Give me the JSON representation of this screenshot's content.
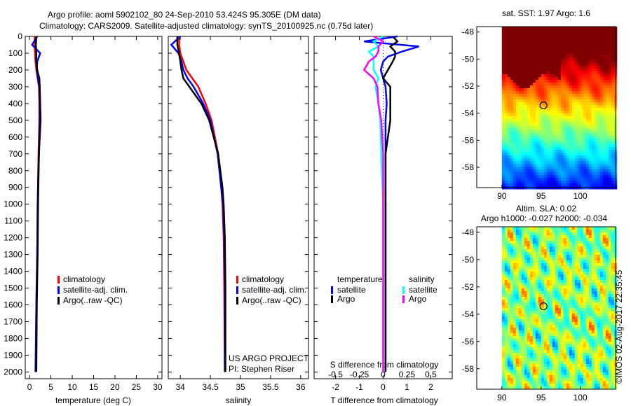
{
  "title_line1": "Argo profile: aoml 5902102_80 24-Sep-2010 53.424S 95.305E (DM data)",
  "title_line2": "Climatology: CARS2009. Satellite-adjusted climatology: synTS_20100925.nc (0.75d later)",
  "credit": "©IMOS 02-Aug-2017 22:35:45",
  "colors": {
    "climatology": "#ff0000",
    "satellite": "#0000ff",
    "argo": "#000000",
    "sal_satellite": "#00ffff",
    "sal_argo": "#ff00ff"
  },
  "chart_data": [
    {
      "type": "line",
      "name": "temperature-panel",
      "xlabel": "temperature (deg C)",
      "ylabel": "",
      "xlim": [
        -1,
        31
      ],
      "ylim": [
        2040,
        0
      ],
      "xticks": [
        0,
        5,
        10,
        15,
        20,
        25,
        30
      ],
      "yticks": [
        0,
        100,
        200,
        300,
        400,
        500,
        600,
        700,
        800,
        900,
        1000,
        1100,
        1200,
        1300,
        1400,
        1500,
        1600,
        1700,
        1800,
        1900,
        2000
      ],
      "legend": [
        "climatology",
        "satellite-adj. clim.",
        "Argo(..raw -QC)"
      ],
      "depth": [
        0,
        50,
        100,
        150,
        200,
        250,
        300,
        400,
        500,
        700,
        1000,
        1300,
        1600,
        2000
      ],
      "series": [
        {
          "name": "climatology",
          "values": [
            1.2,
            1.2,
            1.3,
            1.4,
            1.6,
            1.9,
            2.2,
            2.3,
            2.3,
            2.1,
            1.9,
            1.8,
            1.6,
            1.5
          ]
        },
        {
          "name": "satellite-adj. clim.",
          "values": [
            1.8,
            0.6,
            2.5,
            1.8,
            1.7,
            2.0,
            2.3,
            2.4,
            2.4,
            2.2,
            1.9,
            1.8,
            1.6,
            1.4
          ]
        },
        {
          "name": "Argo(..raw -QC)",
          "values": [
            1.6,
            1.5,
            1.6,
            1.6,
            1.8,
            2.3,
            2.4,
            2.5,
            2.6,
            2.2,
            2.0,
            1.9,
            1.7,
            1.6
          ]
        }
      ]
    },
    {
      "type": "line",
      "name": "salinity-panel",
      "xlabel": "salinity",
      "xlim": [
        33.8,
        36.13
      ],
      "ylim": [
        2040,
        0
      ],
      "xticks": [
        34,
        34.5,
        35,
        35.5,
        36
      ],
      "xticklabels": [
        "34",
        "34.5",
        "35",
        "35.5",
        "36"
      ],
      "legend": [
        "climatology",
        "satellite-adj. clim.",
        "Argo(..raw -QC)"
      ],
      "annotation": [
        "US ARGO PROJECT",
        "PI: Stephen Riser"
      ],
      "depth": [
        0,
        50,
        100,
        150,
        200,
        250,
        300,
        400,
        500,
        700,
        900,
        1000,
        1200,
        1500,
        2000
      ],
      "series": [
        {
          "name": "climatology",
          "values": [
            33.98,
            33.98,
            34.0,
            34.05,
            34.1,
            34.2,
            34.3,
            34.42,
            34.52,
            34.63,
            34.68,
            34.7,
            34.72,
            34.73,
            34.74
          ]
        },
        {
          "name": "satellite-adj. clim.",
          "values": [
            34.0,
            33.85,
            33.97,
            34.02,
            34.05,
            34.12,
            34.22,
            34.38,
            34.5,
            34.62,
            34.68,
            34.71,
            34.73,
            34.74,
            34.74
          ]
        },
        {
          "name": "Argo(..raw -QC)",
          "values": [
            33.95,
            33.95,
            33.98,
            34.0,
            34.02,
            34.05,
            34.15,
            34.35,
            34.48,
            34.63,
            34.7,
            34.72,
            34.74,
            34.75,
            34.75
          ]
        }
      ]
    },
    {
      "type": "line",
      "name": "difference-panel",
      "xlabel": "T difference from climatology",
      "xlabel2": "S difference from climatology",
      "xlim": [
        -2.9,
        2.9
      ],
      "ylim": [
        2040,
        0
      ],
      "xticks": [
        -2,
        -1,
        0,
        1,
        2
      ],
      "xticks2": [
        -0.5,
        -0.25,
        0,
        0.25,
        0.5
      ],
      "xticklabels2": [
        "-0.5",
        "-0.25",
        "0",
        "0.25",
        "0.5"
      ],
      "legend_titles": [
        "temperature",
        "salinity"
      ],
      "legend": [
        "satellite",
        "Argo",
        "satellite",
        "Argo"
      ],
      "depth": [
        0,
        30,
        60,
        90,
        120,
        150,
        200,
        250,
        300,
        400,
        500,
        700,
        1000,
        1500,
        2000
      ],
      "series": [
        {
          "name": "T satellite",
          "unit": "T",
          "values": [
            0.6,
            -0.8,
            1.5,
            0.8,
            0.2,
            0.0,
            -0.1,
            0.0,
            0.1,
            0.15,
            0.1,
            0.1,
            0.1,
            0.1,
            0.1
          ]
        },
        {
          "name": "T Argo",
          "unit": "T",
          "values": [
            0.4,
            0.6,
            0.3,
            0.5,
            0.5,
            0.4,
            0.2,
            0.0,
            0.3,
            0.3,
            0.3,
            0.1,
            0.1,
            0.1,
            0.1
          ]
        },
        {
          "name": "S satellite",
          "unit": "S",
          "values": [
            0.0,
            -0.1,
            -0.05,
            -0.15,
            -0.1,
            -0.1,
            -0.1,
            -0.05,
            -0.08,
            -0.05,
            -0.03,
            -0.02,
            0.0,
            0.0,
            0.0
          ]
        },
        {
          "name": "S Argo",
          "unit": "S",
          "values": [
            -0.1,
            0.0,
            -0.05,
            -0.05,
            -0.08,
            -0.15,
            -0.2,
            -0.1,
            -0.06,
            -0.05,
            -0.02,
            0.0,
            0.0,
            0.0,
            0.0
          ]
        }
      ]
    },
    {
      "type": "heatmap",
      "name": "sst-map",
      "title": "sat. SST: 1.97 Argo: 1.6",
      "xlim": [
        86.8,
        104.5
      ],
      "ylim": [
        -59.5,
        -47.6
      ],
      "xticks": [
        90,
        95,
        100
      ],
      "yticks": [
        -48,
        -50,
        -52,
        -54,
        -56,
        -58
      ],
      "marker": [
        95.305,
        -53.424
      ]
    },
    {
      "type": "heatmap",
      "name": "sla-map",
      "title": [
        "Altim. SLA: 0.02",
        "Argo h1000: -0.027 h2000: -0.034"
      ],
      "xlim": [
        86.8,
        104.5
      ],
      "ylim": [
        -59.5,
        -47.6
      ],
      "xticks": [
        90,
        95,
        100
      ],
      "yticks": [
        -48,
        -50,
        -52,
        -54,
        -56,
        -58
      ],
      "marker": [
        95.305,
        -53.424
      ]
    }
  ]
}
